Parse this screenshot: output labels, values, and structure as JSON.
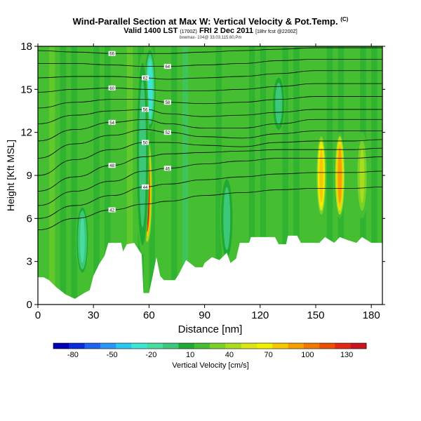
{
  "header": {
    "title": "Wind-Parallel Section at Max W: Vertical Velocity & Pot.Temp.",
    "copyright": "(C)",
    "valid_line": "Valid 1400 LST",
    "valid_utc": "(1700Z)",
    "valid_date": "FRI 2 Dec 2011",
    "forecast": "[18hr fcst @2200Z]",
    "subline": "bxwmax- 104@ 33.03,115.60,Pm"
  },
  "chart_data": {
    "type": "heatmap",
    "xlabel": "Distance [nm]",
    "ylabel": "Height [Kft MSL]",
    "x_ticks": [
      0,
      30,
      60,
      90,
      120,
      150,
      180
    ],
    "y_ticks": [
      0,
      3,
      6,
      9,
      12,
      15,
      18
    ],
    "xlim": [
      0,
      186
    ],
    "ylim": [
      0,
      18
    ],
    "grid": false,
    "colorbar": {
      "label": "Vertical Velocity [cm/s]",
      "ticks": [
        -80,
        -50,
        -20,
        10,
        40,
        70,
        100,
        130
      ],
      "range": [
        -95,
        145
      ],
      "colors": [
        "#0000b4",
        "#0a2ddc",
        "#1e64f0",
        "#2a96f5",
        "#28c8f0",
        "#3ce6d2",
        "#48dca0",
        "#3cc878",
        "#1eaa32",
        "#46be32",
        "#78d228",
        "#aadc1e",
        "#dce614",
        "#f0f000",
        "#f5c800",
        "#f5a000",
        "#f07800",
        "#eb5000",
        "#e12814",
        "#c8141e"
      ]
    },
    "terrain_kft": [
      [
        0,
        1.9
      ],
      [
        3,
        1.9
      ],
      [
        6,
        1.7
      ],
      [
        10,
        1.2
      ],
      [
        15,
        0.7
      ],
      [
        20,
        0.4
      ],
      [
        25,
        0.8
      ],
      [
        28,
        1.0
      ],
      [
        30,
        2.0
      ],
      [
        33,
        2.8
      ],
      [
        36,
        3.4
      ],
      [
        38,
        4.3
      ],
      [
        45,
        4.3
      ],
      [
        46,
        3.7
      ],
      [
        48,
        4.2
      ],
      [
        52,
        4.3
      ],
      [
        56,
        3.5
      ],
      [
        57,
        0.8
      ],
      [
        60,
        0.8
      ],
      [
        62,
        2.0
      ],
      [
        64,
        3.3
      ],
      [
        66,
        2.0
      ],
      [
        68,
        1.7
      ],
      [
        74,
        1.7
      ],
      [
        76,
        2.1
      ],
      [
        80,
        3.1
      ],
      [
        85,
        2.6
      ],
      [
        89,
        2.6
      ],
      [
        90,
        2.9
      ],
      [
        94,
        3.3
      ],
      [
        98,
        3.1
      ],
      [
        102,
        3.6
      ],
      [
        104,
        2.9
      ],
      [
        107,
        3.2
      ],
      [
        109,
        4.3
      ],
      [
        114,
        4.3
      ],
      [
        115,
        4.7
      ],
      [
        128,
        4.7
      ],
      [
        130,
        4.2
      ],
      [
        134,
        4.2
      ],
      [
        135,
        4.8
      ],
      [
        140,
        4.8
      ],
      [
        142,
        4.3
      ],
      [
        152,
        4.3
      ],
      [
        155,
        4.7
      ],
      [
        160,
        4.3
      ],
      [
        163,
        4.7
      ],
      [
        167,
        4.5
      ],
      [
        172,
        4.3
      ],
      [
        175,
        4.7
      ],
      [
        180,
        4.3
      ],
      [
        186,
        4.3
      ]
    ],
    "potential_temperature_labels": [
      "42",
      "44",
      "46",
      "48",
      "50",
      "52",
      "54",
      "56",
      "58",
      "60",
      "62",
      "64",
      "66"
    ],
    "potential_temperature_contours_kft": [
      {
        "x": [
          0,
          20,
          40,
          58,
          70,
          90,
          110,
          130,
          150,
          170,
          186
        ],
        "y": [
          5.2,
          6.0,
          6.6,
          7.0,
          7.2,
          7.6,
          7.8,
          8.0,
          8.1,
          8.1,
          8.2
        ]
      },
      {
        "x": [
          0,
          20,
          40,
          58,
          70,
          90,
          110,
          130,
          150,
          170,
          186
        ],
        "y": [
          6.0,
          6.9,
          7.6,
          8.2,
          8.4,
          8.7,
          8.9,
          9.1,
          9.2,
          9.2,
          9.3
        ]
      },
      {
        "x": [
          0,
          20,
          40,
          58,
          70,
          90,
          110,
          130,
          150,
          170,
          186
        ],
        "y": [
          6.9,
          7.9,
          8.6,
          9.3,
          9.5,
          9.8,
          10.0,
          10.2,
          10.2,
          10.2,
          10.3
        ]
      },
      {
        "x": [
          0,
          20,
          40,
          58,
          70,
          90,
          110,
          130,
          150,
          170,
          186
        ],
        "y": [
          7.9,
          8.9,
          9.7,
          10.3,
          10.5,
          10.6,
          10.7,
          10.8,
          10.8,
          10.8,
          10.9
        ]
      },
      {
        "x": [
          0,
          20,
          40,
          58,
          70,
          90,
          110,
          130,
          150,
          170,
          186
        ],
        "y": [
          9.0,
          10.1,
          10.8,
          11.3,
          11.3,
          11.1,
          11.0,
          11.3,
          11.4,
          11.4,
          11.5
        ]
      },
      {
        "x": [
          0,
          20,
          40,
          58,
          70,
          90,
          110,
          130,
          150,
          170,
          186
        ],
        "y": [
          10.2,
          11.2,
          11.8,
          12.2,
          12.0,
          11.7,
          11.6,
          11.9,
          12.1,
          12.1,
          12.1
        ]
      },
      {
        "x": [
          0,
          20,
          40,
          58,
          70,
          90,
          110,
          130,
          150,
          170,
          186
        ],
        "y": [
          11.4,
          12.2,
          12.7,
          12.9,
          12.6,
          12.3,
          12.3,
          12.6,
          12.9,
          12.9,
          12.9
        ]
      },
      {
        "x": [
          0,
          20,
          40,
          58,
          70,
          90,
          110,
          130,
          150,
          170,
          186
        ],
        "y": [
          12.6,
          13.2,
          13.5,
          13.6,
          13.3,
          13.1,
          13.2,
          13.4,
          13.6,
          13.6,
          13.6
        ]
      },
      {
        "x": [
          0,
          20,
          40,
          58,
          70,
          90,
          110,
          130,
          150,
          170,
          186
        ],
        "y": [
          13.7,
          14.1,
          14.3,
          14.3,
          14.1,
          14.0,
          14.1,
          14.3,
          14.5,
          14.5,
          14.5
        ]
      },
      {
        "x": [
          0,
          20,
          40,
          58,
          70,
          90,
          110,
          130,
          150,
          170,
          186
        ],
        "y": [
          14.8,
          15.0,
          15.1,
          15.0,
          14.9,
          14.9,
          15.0,
          15.2,
          15.4,
          15.4,
          15.4
        ]
      },
      {
        "x": [
          0,
          20,
          40,
          58,
          70,
          90,
          110,
          130,
          150,
          170,
          186
        ],
        "y": [
          15.8,
          15.9,
          15.9,
          15.8,
          15.7,
          15.8,
          15.9,
          16.1,
          16.3,
          16.3,
          16.3
        ]
      },
      {
        "x": [
          0,
          20,
          40,
          58,
          70,
          90,
          110,
          130,
          150,
          170,
          186
        ],
        "y": [
          16.8,
          16.8,
          16.7,
          16.6,
          16.6,
          16.7,
          16.8,
          17.0,
          17.1,
          17.1,
          17.1
        ]
      },
      {
        "x": [
          0,
          20,
          40,
          58,
          70,
          90,
          110,
          130,
          150,
          170,
          186
        ],
        "y": [
          17.7,
          17.6,
          17.5,
          17.5,
          17.5,
          17.6,
          17.7,
          17.8,
          17.9,
          17.9,
          17.9
        ]
      }
    ],
    "vertical_velocity_features": [
      {
        "x": 59,
        "y_min": 4.0,
        "y_max": 12.0,
        "value": 140
      },
      {
        "x": 60.5,
        "y_min": 12.0,
        "y_max": 18.0,
        "value": -30
      },
      {
        "x": 56.5,
        "y_min": 3.5,
        "y_max": 17.5,
        "value": -10
      },
      {
        "x": 153,
        "y_min": 6.0,
        "y_max": 12.0,
        "value": 80
      },
      {
        "x": 163,
        "y_min": 6.0,
        "y_max": 12.0,
        "value": 95
      },
      {
        "x": 175,
        "y_min": 6.0,
        "y_max": 12.0,
        "value": 40
      },
      {
        "x": 24,
        "y_min": 2.0,
        "y_max": 7.0,
        "value": -20
      },
      {
        "x": 102,
        "y_min": 3.0,
        "y_max": 9.0,
        "value": -5
      },
      {
        "x": 130,
        "y_min": 12.0,
        "y_max": 16.0,
        "value": -10
      }
    ]
  }
}
